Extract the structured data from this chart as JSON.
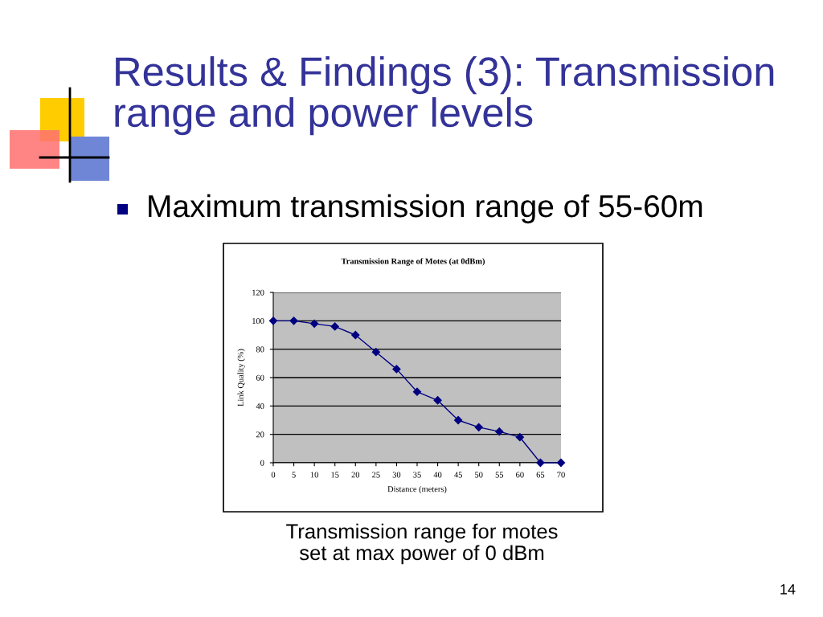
{
  "chart_data": {
    "type": "line",
    "title": "Transmission Range of Motes (at 0dBm)",
    "xlabel": "Distance (meters)",
    "ylabel": "Link Quality (%)",
    "x": [
      0,
      5,
      10,
      15,
      20,
      25,
      30,
      35,
      40,
      45,
      50,
      55,
      60,
      65,
      70
    ],
    "series": [
      {
        "color": "#000080",
        "values": [
          100,
          100,
          98,
          96,
          90,
          78,
          66,
          50,
          44,
          30,
          25,
          22,
          18,
          0,
          0
        ]
      }
    ],
    "xlim": [
      0,
      70
    ],
    "xticks": [
      0,
      5,
      10,
      15,
      20,
      25,
      30,
      35,
      40,
      45,
      50,
      55,
      60,
      65,
      70
    ],
    "ylim": [
      0,
      120
    ],
    "yticks": [
      0,
      20,
      40,
      60,
      80,
      100,
      120
    ],
    "grid": "y",
    "marker": "diamond",
    "line_style": "solid",
    "annotations": [
      "Results & Findings (3): Transmission\nrange and power levels",
      "Maximum transmission range of 55-60m",
      "Transmission range for motes\nset at max power of 0 dBm",
      "14"
    ]
  }
}
